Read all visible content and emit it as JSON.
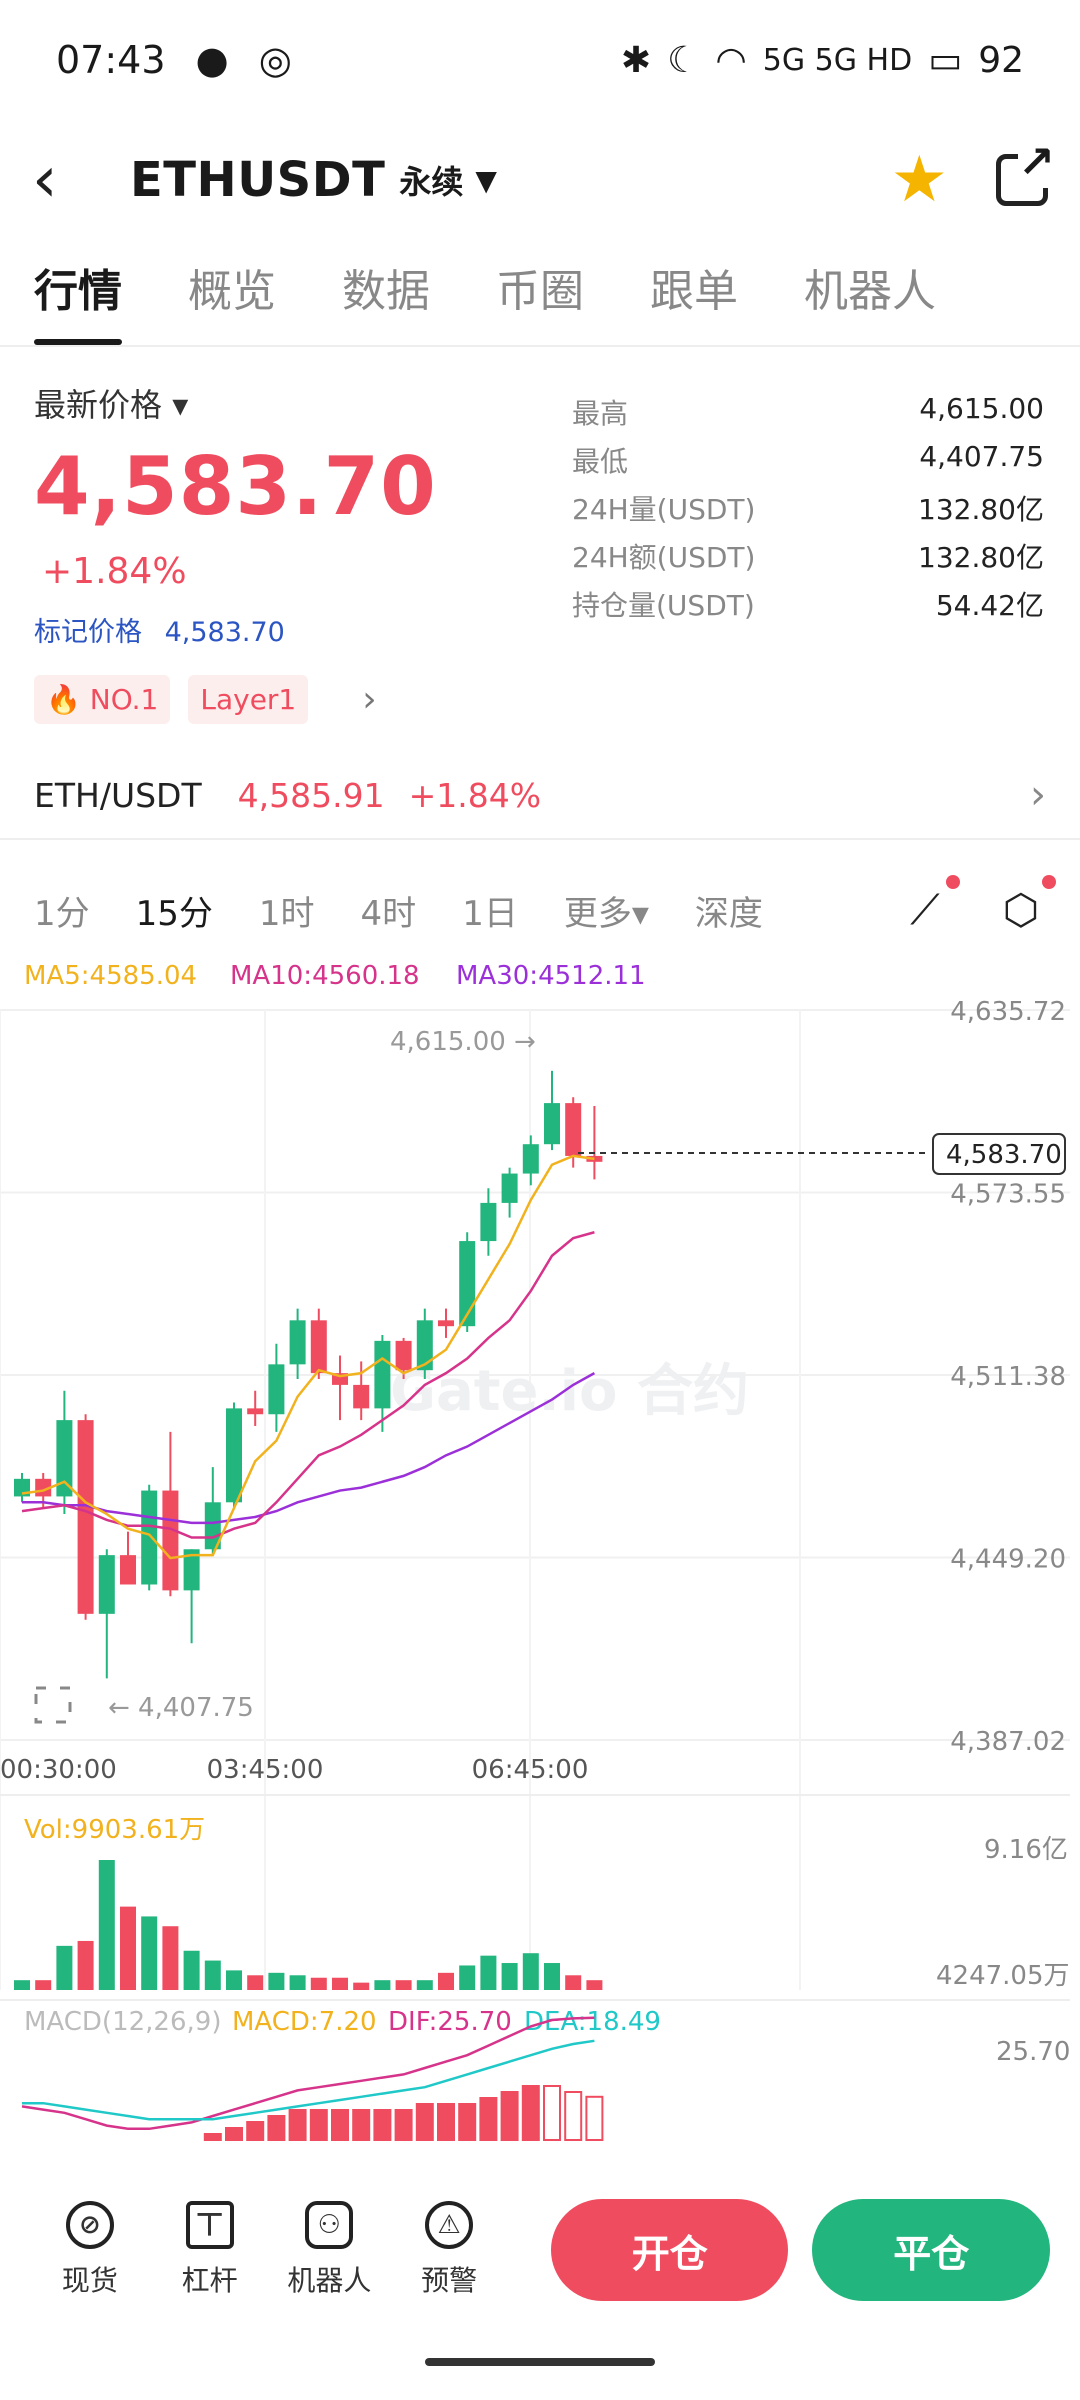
{
  "status_bar": {
    "time": "07:43",
    "indicators": "5G 5G HD",
    "battery": "92"
  },
  "header": {
    "symbol": "ETHUSDT",
    "contract_type": "永续"
  },
  "tabs": [
    "行情",
    "概览",
    "数据",
    "币圈",
    "跟单",
    "机器人"
  ],
  "price": {
    "label": "最新价格",
    "value": "4,583.70",
    "change": "+1.84%",
    "mark_label": "标记价格",
    "mark_value": "4,583.70",
    "tags": [
      "NO.1",
      "Layer1"
    ]
  },
  "stats": [
    {
      "label": "最高",
      "value": "4,615.00"
    },
    {
      "label": "最低",
      "value": "4,407.75"
    },
    {
      "label": "24H量(USDT)",
      "value": "132.80亿"
    },
    {
      "label": "24H额(USDT)",
      "value": "132.80亿"
    },
    {
      "label": "持仓量(USDT)",
      "value": "54.42亿"
    }
  ],
  "spot": {
    "pair": "ETH/USDT",
    "price": "4,585.91",
    "change": "+1.84%"
  },
  "intervals": [
    "1分",
    "15分",
    "1时",
    "4时",
    "1日",
    "更多▾",
    "深度"
  ],
  "active_interval": "15分",
  "chart_data": {
    "type": "candlestick",
    "ma_labels": [
      "MA5:4585.04",
      "MA10:4560.18",
      "MA30:4512.11"
    ],
    "y_ticks": [
      "4,635.72",
      "4,573.55",
      "4,511.38",
      "4,449.20",
      "4,387.02"
    ],
    "x_ticks": [
      "00:30:00",
      "03:45:00",
      "06:45:00"
    ],
    "high_label": "4,615.00 →",
    "low_label": "← 4,407.75",
    "current_price": "4,583.70",
    "watermark": "Gate.io 合约",
    "ylim": [
      4387.02,
      4635.72
    ],
    "candles": [
      [
        4470,
        4478,
        4468,
        4476
      ],
      [
        4476,
        4478,
        4466,
        4470
      ],
      [
        4470,
        4506,
        4464,
        4496
      ],
      [
        4496,
        4498,
        4428,
        4430
      ],
      [
        4430,
        4452,
        4408,
        4450
      ],
      [
        4450,
        4458,
        4440,
        4440
      ],
      [
        4440,
        4474,
        4438,
        4472
      ],
      [
        4472,
        4492,
        4436,
        4438
      ],
      [
        4438,
        4452,
        4420,
        4452
      ],
      [
        4452,
        4480,
        4450,
        4468
      ],
      [
        4468,
        4502,
        4466,
        4500
      ],
      [
        4500,
        4506,
        4494,
        4498
      ],
      [
        4498,
        4522,
        4492,
        4515
      ],
      [
        4515,
        4534,
        4510,
        4530
      ],
      [
        4530,
        4534,
        4510,
        4512
      ],
      [
        4512,
        4518,
        4496,
        4508
      ],
      [
        4508,
        4516,
        4496,
        4500
      ],
      [
        4500,
        4525,
        4492,
        4523
      ],
      [
        4523,
        4524,
        4510,
        4513
      ],
      [
        4513,
        4534,
        4510,
        4530
      ],
      [
        4530,
        4534,
        4524,
        4528
      ],
      [
        4528,
        4560,
        4526,
        4557
      ],
      [
        4557,
        4575,
        4552,
        4570
      ],
      [
        4570,
        4582,
        4565,
        4580
      ],
      [
        4580,
        4593,
        4576,
        4590
      ],
      [
        4590,
        4615,
        4588,
        4604
      ],
      [
        4604,
        4606,
        4582,
        4586
      ],
      [
        4586,
        4603,
        4578,
        4584
      ]
    ],
    "ma5": [
      4471,
      4472,
      4475,
      4468,
      4464,
      4459,
      4457,
      4449,
      4450,
      4450,
      4466,
      4482,
      4489,
      4504,
      4513,
      4511,
      4512,
      4517,
      4512,
      4515,
      4520,
      4532,
      4544,
      4556,
      4571,
      4583,
      4586,
      4585
    ],
    "ma10": [
      4465,
      4466,
      4467,
      4465,
      4462,
      4460,
      4460,
      4459,
      4456,
      4456,
      4459,
      4461,
      4468,
      4476,
      4484,
      4487,
      4491,
      4496,
      4501,
      4508,
      4512,
      4517,
      4524,
      4530,
      4540,
      4552,
      4558,
      4560
    ],
    "ma30": [
      4468,
      4468,
      4467,
      4467,
      4465,
      4464,
      4463,
      4462,
      4461,
      4461,
      4462,
      4463,
      4465,
      4468,
      4470,
      4472,
      4473,
      4475,
      4477,
      4480,
      4484,
      4487,
      4491,
      4495,
      4499,
      4503,
      4508,
      4512
    ],
    "vol_label": "Vol:9903.61万",
    "vol_ticks": [
      "9.16亿",
      "4247.05万"
    ],
    "volumes": [
      4,
      4,
      18,
      20,
      53,
      34,
      30,
      26,
      16,
      12,
      8,
      6,
      7,
      6,
      5,
      5,
      3,
      4,
      4,
      4,
      7,
      10,
      14,
      11,
      15,
      11,
      6,
      4
    ],
    "macd_labels": [
      "MACD(12,26,9)",
      "MACD:7.20",
      "DIF:25.70",
      "DEA:18.49"
    ],
    "macd_tick": "25.70",
    "dif": [
      -2,
      -3,
      -4,
      -6,
      -8,
      -9,
      -9,
      -8,
      -7,
      -5,
      -3,
      -1,
      1,
      3,
      4,
      5,
      6,
      7,
      8,
      10,
      12,
      14,
      17,
      20,
      23,
      25,
      25.5,
      25.7
    ],
    "dea": [
      -1,
      -1,
      -2,
      -3,
      -4,
      -5,
      -6,
      -6,
      -6,
      -6,
      -5,
      -4,
      -3,
      -2,
      -1,
      0,
      1,
      2,
      3,
      4,
      6,
      8,
      10,
      12,
      14,
      16,
      17.5,
      18.5
    ]
  },
  "bottom_nav": {
    "items": [
      {
        "icon": "spot-icon",
        "label": "现货"
      },
      {
        "icon": "leverage-icon",
        "label": "杠杆"
      },
      {
        "icon": "robot-icon",
        "label": "机器人"
      },
      {
        "icon": "alert-icon",
        "label": "预警"
      }
    ],
    "open_label": "开仓",
    "close_label": "平仓"
  },
  "colors": {
    "up": "#ef4d5f",
    "down": "#22b57e",
    "ma5": "#f1b21e",
    "ma10": "#d6338b",
    "ma30": "#9b30d9",
    "dea": "#20c8c8"
  }
}
